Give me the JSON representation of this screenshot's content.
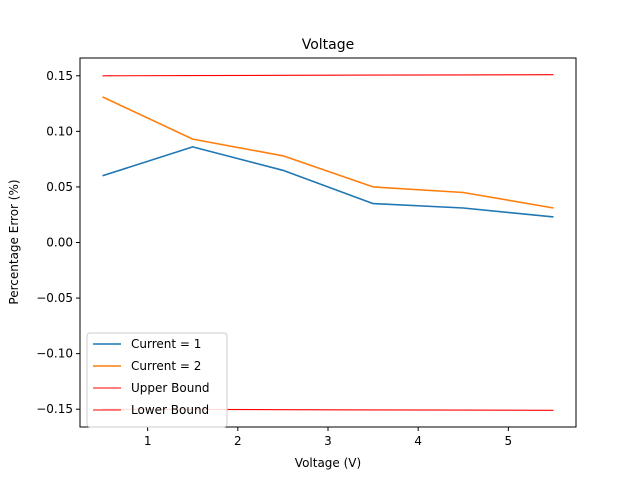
{
  "chart_data": {
    "type": "line",
    "title": "Voltage",
    "xlabel": "Voltage (V)",
    "ylabel": "Percentage Error (%)",
    "xlim": [
      0.25,
      5.75
    ],
    "ylim": [
      -0.166,
      0.166
    ],
    "xticks": [
      1,
      2,
      3,
      4,
      5
    ],
    "xtick_labels": [
      "1",
      "2",
      "3",
      "4",
      "5"
    ],
    "yticks": [
      -0.15,
      -0.1,
      -0.05,
      0.0,
      0.05,
      0.1,
      0.15
    ],
    "ytick_labels": [
      "−0.15",
      "−0.10",
      "−0.05",
      "0.00",
      "0.05",
      "0.10",
      "0.15"
    ],
    "grid": false,
    "legend_position": "lower-left",
    "x": [
      0.5,
      1.5,
      2.5,
      3.5,
      4.5,
      5.5
    ],
    "series": [
      {
        "name": "Current = 1",
        "color": "#1f77b4",
        "values": [
          0.06,
          0.086,
          0.065,
          0.035,
          0.031,
          0.023
        ]
      },
      {
        "name": "Current = 2",
        "color": "#ff7f0e",
        "values": [
          0.131,
          0.093,
          0.078,
          0.05,
          0.045,
          0.031
        ]
      },
      {
        "name": "Upper Bound",
        "color": "#ff0000",
        "thin": true,
        "values": [
          0.15,
          0.1502,
          0.1504,
          0.1506,
          0.1508,
          0.151
        ]
      },
      {
        "name": "Lower Bound",
        "color": "#ff0000",
        "thin": true,
        "values": [
          -0.15,
          -0.1502,
          -0.1504,
          -0.1506,
          -0.1508,
          -0.151
        ]
      }
    ]
  }
}
